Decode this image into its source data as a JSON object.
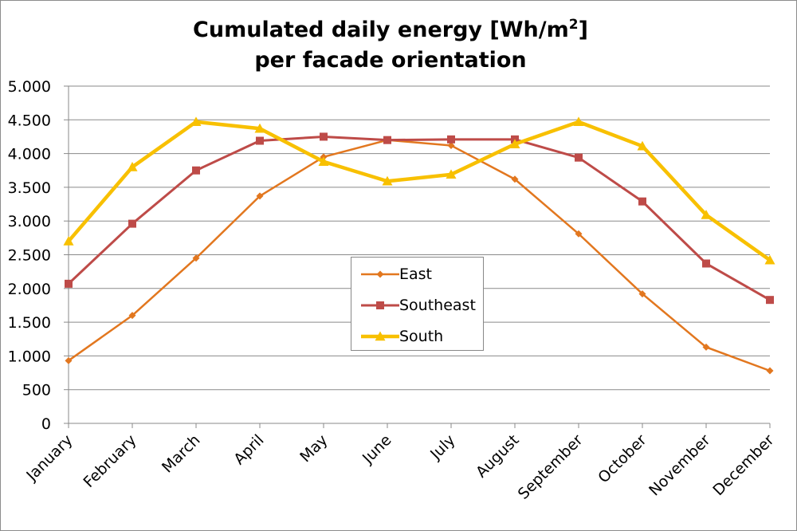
{
  "chart_data": {
    "type": "line",
    "title_main": "Cumulated daily energy [Wh/m",
    "title_sup": "2",
    "title_close": "]",
    "title_line2": "per facade orientation",
    "categories": [
      "January",
      "February",
      "March",
      "April",
      "May",
      "June",
      "July",
      "August",
      "September",
      "October",
      "November",
      "December"
    ],
    "ylim": [
      0,
      5000
    ],
    "yticks": [
      0,
      500,
      1000,
      1500,
      2000,
      2500,
      3000,
      3500,
      4000,
      4500,
      5000
    ],
    "ytick_labels": [
      "0",
      "500",
      "1.000",
      "1.500",
      "2.000",
      "2.500",
      "3.000",
      "3.500",
      "4.000",
      "4.500",
      "5.000"
    ],
    "grid": true,
    "legend_position": "center",
    "series": [
      {
        "name": "East",
        "color": "#E2771F",
        "marker": "diamond",
        "values": [
          930,
          1600,
          2450,
          3370,
          3950,
          4200,
          4120,
          3620,
          2810,
          1920,
          1130,
          780
        ]
      },
      {
        "name": "Southeast",
        "color": "#BE4B48",
        "marker": "square",
        "values": [
          2070,
          2960,
          3750,
          4190,
          4250,
          4200,
          4210,
          4210,
          3940,
          3290,
          2370,
          1830
        ]
      },
      {
        "name": "South",
        "color": "#F8C000",
        "marker": "triangle",
        "values": [
          2700,
          3800,
          4470,
          4370,
          3880,
          3590,
          3690,
          4140,
          4470,
          4110,
          3090,
          2420
        ]
      }
    ]
  }
}
